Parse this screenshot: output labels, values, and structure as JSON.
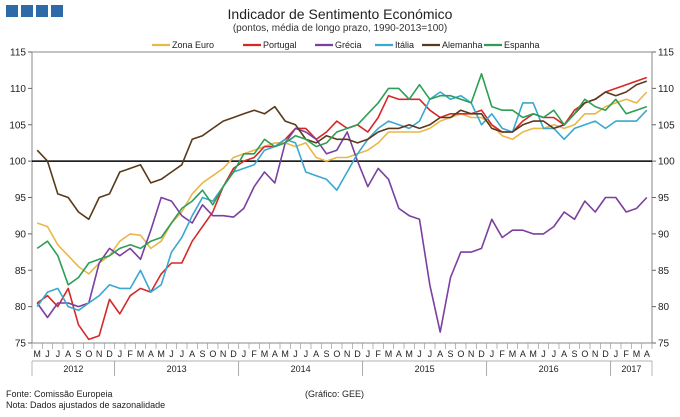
{
  "header": {
    "title": "Indicador de Sentimento Económico",
    "subtitle": "(pontos, média de longo prazo, 1990-2013=100)"
  },
  "footer": {
    "source": "Fonte: Comissão Europeia",
    "note": "Nota: Dados ajustados de sazonalidade",
    "credit": "(Gráfico: GEE)"
  },
  "chart_data": {
    "type": "line",
    "ylim": [
      75,
      115
    ],
    "yticks": [
      75,
      80,
      85,
      90,
      95,
      100,
      105,
      110,
      115
    ],
    "reference_line": 100,
    "legend_position": "top",
    "month_labels": [
      "M",
      "J",
      "J",
      "A",
      "S",
      "O",
      "N",
      "D",
      "J",
      "F",
      "M",
      "A",
      "M",
      "J",
      "J",
      "A",
      "S",
      "O",
      "N",
      "D",
      "J",
      "F",
      "M",
      "A",
      "M",
      "J",
      "J",
      "A",
      "S",
      "O",
      "N",
      "D",
      "J",
      "F",
      "M",
      "A",
      "M",
      "J",
      "J",
      "A",
      "S",
      "O",
      "N",
      "D",
      "J",
      "F",
      "M",
      "A",
      "M",
      "J",
      "J",
      "A",
      "S",
      "O",
      "N",
      "D",
      "J",
      "F",
      "M",
      "A"
    ],
    "years": [
      {
        "label": "2012",
        "start": 0,
        "end": 8
      },
      {
        "label": "2013",
        "start": 8,
        "end": 20
      },
      {
        "label": "2014",
        "start": 20,
        "end": 32
      },
      {
        "label": "2015",
        "start": 32,
        "end": 44
      },
      {
        "label": "2016",
        "start": 44,
        "end": 56
      },
      {
        "label": "2017",
        "start": 56,
        "end": 60
      }
    ],
    "series": [
      {
        "name": "Zona Euro",
        "color": "#e8b84a",
        "values": [
          91.5,
          91.0,
          88.5,
          87.0,
          85.5,
          84.5,
          86.0,
          87.0,
          89.0,
          90.0,
          89.8,
          88.0,
          89.0,
          91.5,
          93.0,
          95.5,
          97.0,
          98.0,
          99.0,
          100.5,
          101.0,
          101.5,
          102.0,
          102.5,
          102.5,
          102.0,
          102.5,
          100.5,
          100.0,
          100.5,
          100.5,
          101.0,
          101.5,
          102.5,
          104.0,
          104.0,
          104.0,
          104.0,
          104.5,
          105.5,
          106.0,
          106.5,
          106.0,
          106.0,
          105.0,
          103.5,
          103.0,
          104.0,
          104.5,
          104.5,
          105.0,
          104.5,
          105.0,
          106.5,
          106.5,
          107.5,
          108.0,
          108.5,
          108.0,
          109.5
        ]
      },
      {
        "name": "Portugal",
        "color": "#d62828",
        "values": [
          80.5,
          81.5,
          80.0,
          82.5,
          77.5,
          75.5,
          76.0,
          81.0,
          79.0,
          81.5,
          82.5,
          82.0,
          84.5,
          86.0,
          86.0,
          89.0,
          91.0,
          93.0,
          96.5,
          99.0,
          100.0,
          100.5,
          102.0,
          102.0,
          103.0,
          104.5,
          104.5,
          103.0,
          104.0,
          105.5,
          104.5,
          105.0,
          104.0,
          106.0,
          109.0,
          108.5,
          108.5,
          108.5,
          107.0,
          106.0,
          106.5,
          106.5,
          106.5,
          107.0,
          105.0,
          104.0,
          104.0,
          105.5,
          106.5,
          106.0,
          106.0,
          105.0,
          107.0,
          108.0,
          108.5,
          109.5,
          110.0,
          110.5,
          111.0,
          111.5
        ]
      },
      {
        "name": "Grécia",
        "color": "#7b3fa0",
        "values": [
          80.5,
          78.5,
          80.5,
          80.5,
          80.0,
          80.5,
          86.0,
          88.0,
          87.0,
          88.0,
          86.5,
          90.5,
          95.0,
          94.5,
          92.5,
          91.5,
          94.0,
          92.5,
          92.5,
          92.3,
          93.5,
          96.5,
          98.5,
          97.0,
          102.5,
          104.5,
          104.0,
          103.0,
          101.0,
          101.5,
          104.0,
          100.0,
          96.5,
          99.0,
          97.5,
          93.5,
          92.5,
          92.0,
          83.0,
          76.5,
          84.0,
          87.5,
          87.5,
          88.0,
          92.0,
          89.5,
          90.5,
          90.5,
          90.0,
          90.0,
          91.0,
          93.0,
          92.0,
          94.5,
          93.0,
          95.0,
          95.0,
          93.0,
          93.5,
          95.0
        ]
      },
      {
        "name": "Itália",
        "color": "#3aa8d0",
        "values": [
          80.0,
          82.0,
          82.5,
          80.0,
          79.5,
          80.5,
          81.5,
          83.0,
          82.5,
          82.5,
          85.0,
          82.0,
          83.0,
          87.5,
          89.5,
          92.5,
          95.0,
          94.5,
          96.5,
          98.5,
          99.0,
          99.5,
          101.5,
          102.0,
          103.0,
          102.5,
          98.5,
          98.0,
          97.5,
          96.0,
          98.5,
          101.0,
          103.0,
          104.5,
          105.5,
          105.0,
          104.5,
          105.5,
          108.5,
          109.5,
          108.5,
          109.0,
          108.0,
          105.0,
          106.5,
          104.5,
          104.0,
          108.0,
          108.0,
          104.5,
          104.5,
          103.0,
          104.5,
          105.0,
          105.5,
          104.5,
          105.5,
          105.5,
          105.5,
          107.0
        ]
      },
      {
        "name": "Alemanha",
        "color": "#5a3a1a",
        "values": [
          101.5,
          100.0,
          95.5,
          95.0,
          93.0,
          92.0,
          95.0,
          95.5,
          98.5,
          99.0,
          99.5,
          97.0,
          97.5,
          98.5,
          99.5,
          103.0,
          103.5,
          104.5,
          105.5,
          106.0,
          106.5,
          107.0,
          106.5,
          107.5,
          105.5,
          105.0,
          103.0,
          102.5,
          103.5,
          103.0,
          103.0,
          102.5,
          103.0,
          104.0,
          104.5,
          104.5,
          105.0,
          104.5,
          105.0,
          106.0,
          106.0,
          107.0,
          106.5,
          106.5,
          104.5,
          104.0,
          104.0,
          105.0,
          105.5,
          105.5,
          104.5,
          105.0,
          106.5,
          108.0,
          108.5,
          109.5,
          109.0,
          109.5,
          110.5,
          111.0
        ]
      },
      {
        "name": "Espanha",
        "color": "#2f9e55",
        "values": [
          88.0,
          89.0,
          87.0,
          83.0,
          84.0,
          86.0,
          86.5,
          87.0,
          88.0,
          88.5,
          88.0,
          89.0,
          89.5,
          91.5,
          93.5,
          94.5,
          96.0,
          94.0,
          96.5,
          98.5,
          101.0,
          101.0,
          103.0,
          102.0,
          102.5,
          103.5,
          103.0,
          102.0,
          102.5,
          104.0,
          104.5,
          105.0,
          106.5,
          108.0,
          110.0,
          110.0,
          108.5,
          110.5,
          108.5,
          109.0,
          109.0,
          108.5,
          108.0,
          112.0,
          107.5,
          107.0,
          107.0,
          106.0,
          106.5,
          106.0,
          107.0,
          105.0,
          106.5,
          108.5,
          107.5,
          107.0,
          108.5,
          106.5,
          107.0,
          107.5
        ]
      }
    ]
  }
}
